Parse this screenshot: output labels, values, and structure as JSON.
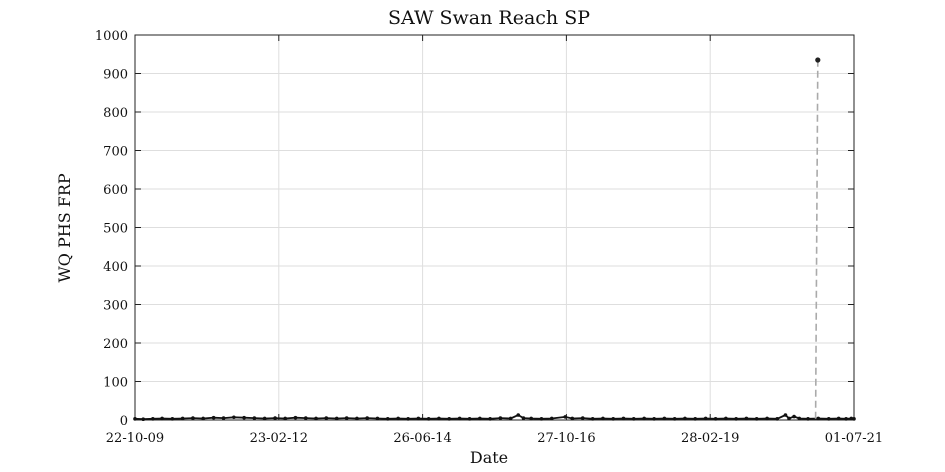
{
  "chart_data": {
    "type": "line",
    "title": "SAW Swan Reach SP",
    "xlabel": "Date",
    "ylabel": "WQ PHS FRP",
    "x_is_date": true,
    "xlim": [
      "2009-10-22",
      "2021-07-01"
    ],
    "ylim": [
      0,
      1000
    ],
    "grid": true,
    "x_ticks": [
      "2009-10-22",
      "2012-02-23",
      "2014-06-26",
      "2016-10-27",
      "2019-02-28",
      "2021-07-01"
    ],
    "x_tick_labels": [
      "22-10-09",
      "23-02-12",
      "26-06-14",
      "27-10-16",
      "28-02-19",
      "01-07-21"
    ],
    "y_ticks": [
      0,
      100,
      200,
      300,
      400,
      500,
      600,
      700,
      800,
      900,
      1000
    ],
    "y_tick_labels": [
      "0",
      "100",
      "200",
      "300",
      "400",
      "500",
      "600",
      "700",
      "800",
      "900",
      "1000"
    ],
    "series": [
      {
        "style": "black-markers-line",
        "color": "#111111",
        "points": [
          [
            "2009-10-22",
            3
          ],
          [
            "2009-12-10",
            2
          ],
          [
            "2010-02-05",
            3
          ],
          [
            "2010-04-01",
            4
          ],
          [
            "2010-06-01",
            3
          ],
          [
            "2010-08-01",
            4
          ],
          [
            "2010-10-01",
            5
          ],
          [
            "2010-12-01",
            4
          ],
          [
            "2011-02-01",
            6
          ],
          [
            "2011-04-01",
            5
          ],
          [
            "2011-06-01",
            7
          ],
          [
            "2011-08-01",
            6
          ],
          [
            "2011-10-01",
            5
          ],
          [
            "2011-12-01",
            4
          ],
          [
            "2012-02-01",
            5
          ],
          [
            "2012-04-01",
            4
          ],
          [
            "2012-06-01",
            6
          ],
          [
            "2012-08-01",
            5
          ],
          [
            "2012-10-01",
            4
          ],
          [
            "2012-12-01",
            5
          ],
          [
            "2013-02-01",
            4
          ],
          [
            "2013-04-01",
            5
          ],
          [
            "2013-06-01",
            4
          ],
          [
            "2013-08-01",
            5
          ],
          [
            "2013-10-01",
            4
          ],
          [
            "2013-12-01",
            3
          ],
          [
            "2014-02-01",
            4
          ],
          [
            "2014-04-01",
            3
          ],
          [
            "2014-06-01",
            4
          ],
          [
            "2014-08-01",
            3
          ],
          [
            "2014-10-01",
            4
          ],
          [
            "2014-12-01",
            3
          ],
          [
            "2015-02-01",
            4
          ],
          [
            "2015-04-01",
            3
          ],
          [
            "2015-06-01",
            4
          ],
          [
            "2015-08-01",
            3
          ],
          [
            "2015-10-01",
            5
          ],
          [
            "2015-12-01",
            4
          ],
          [
            "2016-01-15",
            13
          ],
          [
            "2016-02-15",
            5
          ],
          [
            "2016-04-01",
            4
          ],
          [
            "2016-06-01",
            3
          ],
          [
            "2016-08-01",
            4
          ],
          [
            "2016-10-20",
            8
          ],
          [
            "2016-12-01",
            4
          ],
          [
            "2017-02-01",
            5
          ],
          [
            "2017-04-01",
            3
          ],
          [
            "2017-06-01",
            4
          ],
          [
            "2017-08-01",
            3
          ],
          [
            "2017-10-01",
            4
          ],
          [
            "2017-12-01",
            3
          ],
          [
            "2018-02-01",
            4
          ],
          [
            "2018-04-01",
            3
          ],
          [
            "2018-06-01",
            4
          ],
          [
            "2018-08-01",
            3
          ],
          [
            "2018-10-01",
            4
          ],
          [
            "2018-12-01",
            3
          ],
          [
            "2019-02-01",
            4
          ],
          [
            "2019-04-01",
            3
          ],
          [
            "2019-06-01",
            4
          ],
          [
            "2019-08-01",
            3
          ],
          [
            "2019-10-01",
            4
          ],
          [
            "2019-12-01",
            3
          ],
          [
            "2020-02-01",
            4
          ],
          [
            "2020-04-01",
            3
          ],
          [
            "2020-05-20",
            13
          ],
          [
            "2020-06-10",
            4
          ],
          [
            "2020-07-10",
            9
          ],
          [
            "2020-08-10",
            4
          ],
          [
            "2020-10-01",
            3
          ],
          [
            "2020-12-01",
            4
          ],
          [
            "2021-02-01",
            3
          ],
          [
            "2021-04-01",
            4
          ],
          [
            "2021-05-15",
            3
          ],
          [
            "2021-06-15",
            4
          ],
          [
            "2021-07-01",
            3
          ]
        ]
      },
      {
        "style": "gray-dashed-line",
        "color": "#aaaaaa",
        "points": [
          [
            "2020-11-15",
            3
          ],
          [
            "2020-11-28",
            935
          ]
        ],
        "marker_point": [
          "2020-11-28",
          935
        ]
      }
    ]
  }
}
